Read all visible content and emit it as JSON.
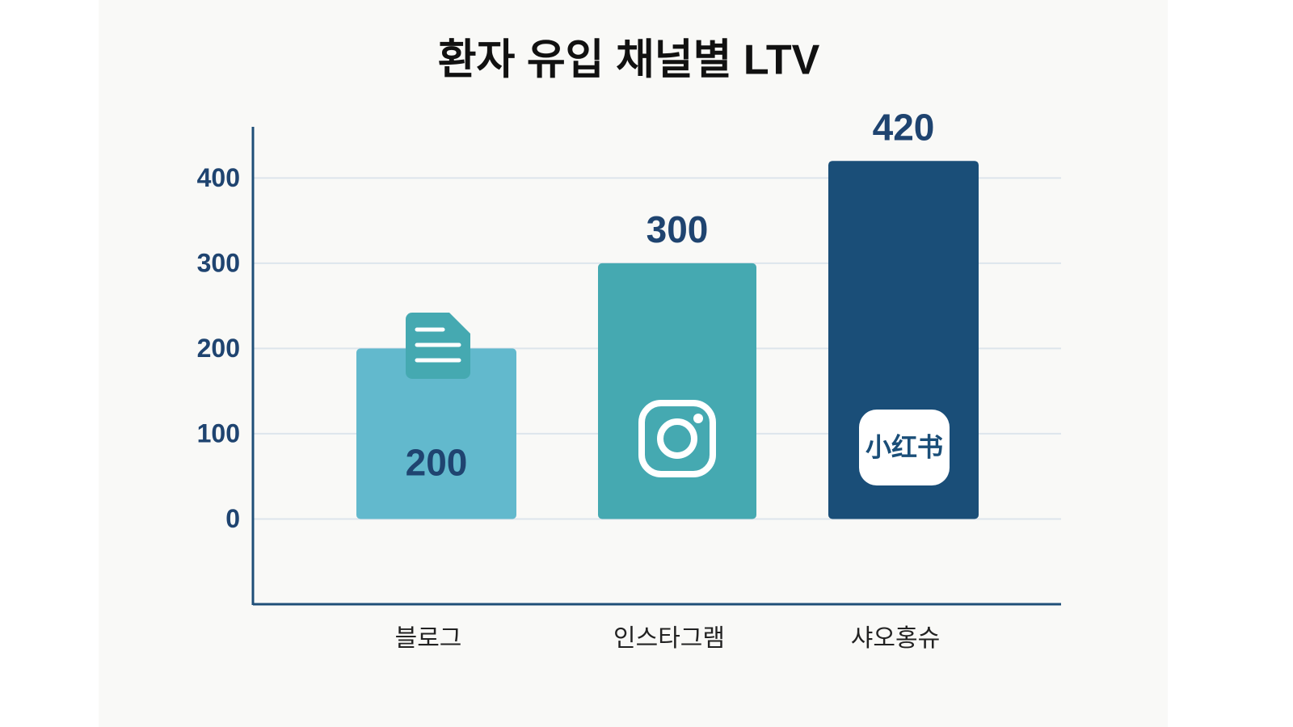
{
  "chart_data": {
    "type": "bar",
    "title": "환자 유입 채널별 LTV",
    "categories": [
      "블로그",
      "인스타그램",
      "샤오홍슈"
    ],
    "values": [
      200,
      300,
      420
    ],
    "colors": [
      "#62b9cd",
      "#45a9b1",
      "#1a4e78"
    ],
    "ylim": [
      -100,
      460
    ],
    "yticks": [
      0,
      100,
      200,
      300,
      400
    ],
    "grid": true,
    "annotations": [
      "小红书"
    ]
  }
}
